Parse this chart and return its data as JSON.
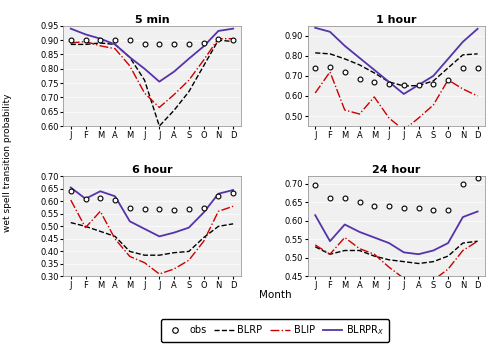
{
  "months": [
    "J",
    "F",
    "M",
    "A",
    "M",
    "J",
    "J",
    "A",
    "S",
    "O",
    "N",
    "D"
  ],
  "panels": [
    {
      "title": "5 min",
      "ylim": [
        0.6,
        0.95
      ],
      "yticks": [
        0.6,
        0.65,
        0.7,
        0.75,
        0.8,
        0.85,
        0.9,
        0.95
      ],
      "obs": [
        0.9,
        0.9,
        0.9,
        0.9,
        0.9,
        0.885,
        0.885,
        0.885,
        0.885,
        0.89,
        0.905,
        0.9
      ],
      "BLRP": [
        0.885,
        0.885,
        0.89,
        0.885,
        0.84,
        0.76,
        0.6,
        0.655,
        0.72,
        0.81,
        0.9,
        0.895
      ],
      "BLIP": [
        0.89,
        0.895,
        0.88,
        0.87,
        0.81,
        0.715,
        0.665,
        0.71,
        0.76,
        0.83,
        0.905,
        0.905
      ],
      "BLRPRx": [
        0.94,
        0.92,
        0.905,
        0.885,
        0.84,
        0.8,
        0.755,
        0.79,
        0.835,
        0.878,
        0.932,
        0.94
      ]
    },
    {
      "title": "1 hour",
      "ylim": [
        0.45,
        0.95
      ],
      "yticks": [
        0.5,
        0.6,
        0.7,
        0.8,
        0.9
      ],
      "obs": [
        0.74,
        0.745,
        0.72,
        0.685,
        0.67,
        0.66,
        0.655,
        0.655,
        0.66,
        0.68,
        0.74,
        0.74
      ],
      "BLRP": [
        0.815,
        0.81,
        0.785,
        0.755,
        0.715,
        0.67,
        0.65,
        0.652,
        0.675,
        0.74,
        0.805,
        0.81
      ],
      "BLIP": [
        0.615,
        0.72,
        0.53,
        0.51,
        0.595,
        0.49,
        0.43,
        0.49,
        0.555,
        0.68,
        0.635,
        0.6
      ],
      "BLRPRx": [
        0.94,
        0.92,
        0.85,
        0.79,
        0.73,
        0.67,
        0.61,
        0.655,
        0.7,
        0.785,
        0.87,
        0.935
      ]
    },
    {
      "title": "6 hour",
      "ylim": [
        0.3,
        0.7
      ],
      "yticks": [
        0.3,
        0.35,
        0.4,
        0.45,
        0.5,
        0.55,
        0.6,
        0.65,
        0.7
      ],
      "obs": [
        0.64,
        0.61,
        0.615,
        0.605,
        0.575,
        0.57,
        0.57,
        0.565,
        0.57,
        0.575,
        0.62,
        0.635
      ],
      "BLRP": [
        0.515,
        0.5,
        0.48,
        0.46,
        0.4,
        0.385,
        0.385,
        0.395,
        0.4,
        0.455,
        0.5,
        0.51
      ],
      "BLIP": [
        0.605,
        0.495,
        0.56,
        0.45,
        0.38,
        0.355,
        0.31,
        0.33,
        0.365,
        0.44,
        0.56,
        0.58
      ],
      "BLRPRx": [
        0.655,
        0.61,
        0.64,
        0.62,
        0.52,
        0.49,
        0.46,
        0.475,
        0.495,
        0.555,
        0.63,
        0.645
      ]
    },
    {
      "title": "24 hour",
      "ylim": [
        0.45,
        0.72
      ],
      "yticks": [
        0.45,
        0.5,
        0.55,
        0.6,
        0.65,
        0.7
      ],
      "obs": [
        0.695,
        0.66,
        0.66,
        0.65,
        0.64,
        0.64,
        0.635,
        0.635,
        0.63,
        0.63,
        0.7,
        0.715
      ],
      "BLRP": [
        0.53,
        0.51,
        0.52,
        0.52,
        0.505,
        0.495,
        0.49,
        0.485,
        0.49,
        0.505,
        0.54,
        0.545
      ],
      "BLIP": [
        0.535,
        0.51,
        0.555,
        0.525,
        0.51,
        0.475,
        0.445,
        0.435,
        0.44,
        0.47,
        0.52,
        0.545
      ],
      "BLRPRx": [
        0.615,
        0.545,
        0.59,
        0.57,
        0.555,
        0.54,
        0.515,
        0.51,
        0.52,
        0.54,
        0.61,
        0.625
      ]
    }
  ],
  "colors": {
    "obs": "black",
    "BLRP": "black",
    "BLIP": "#cc0000",
    "BLRPRx": "#5533aa"
  },
  "ylabel": "wet spell transition probability",
  "xlabel": "Month",
  "bg_color": "#f0f0f0"
}
